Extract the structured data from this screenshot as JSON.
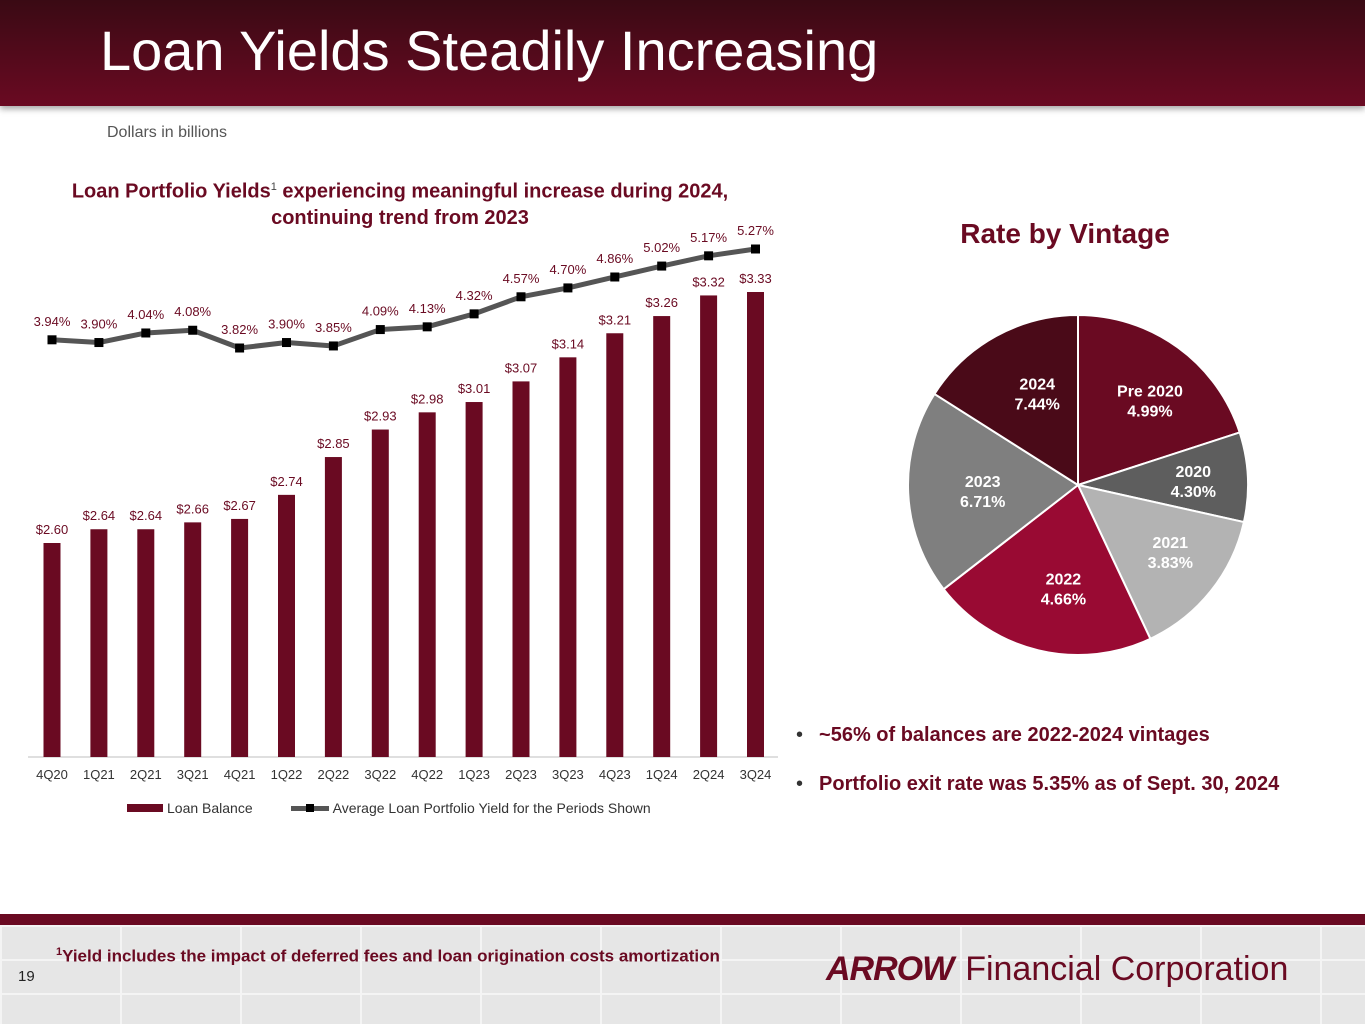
{
  "header": {
    "title": "Loan Yields Steadily Increasing"
  },
  "units_note": "Dollars in billions",
  "left_chart": {
    "title_pre": "Loan Portfolio Yields",
    "title_sup": "1",
    "title_post": " experiencing meaningful increase during 2024, continuing trend from 2023",
    "legend": {
      "bar_label": "Loan Balance",
      "line_label": "Average Loan Portfolio Yield for the Periods Shown"
    }
  },
  "chart_data": [
    {
      "type": "bar",
      "categories": [
        "4Q20",
        "1Q21",
        "2Q21",
        "3Q21",
        "4Q21",
        "1Q22",
        "2Q22",
        "3Q22",
        "4Q22",
        "1Q23",
        "2Q23",
        "3Q23",
        "4Q23",
        "1Q24",
        "2Q24",
        "3Q24"
      ],
      "series": [
        {
          "name": "Loan Balance",
          "values": [
            2.6,
            2.64,
            2.64,
            2.66,
            2.67,
            2.74,
            2.85,
            2.93,
            2.98,
            3.01,
            3.07,
            3.14,
            3.21,
            3.26,
            3.32,
            3.33
          ],
          "labels": [
            "$2.60",
            "$2.64",
            "$2.64",
            "$2.66",
            "$2.67",
            "$2.74",
            "$2.85",
            "$2.93",
            "$2.98",
            "$3.01",
            "$3.07",
            "$3.14",
            "$3.21",
            "$3.26",
            "$3.32",
            "$3.33"
          ],
          "color": "#6a0a22"
        },
        {
          "name": "Average Loan Portfolio Yield for the Periods Shown",
          "type": "line",
          "values": [
            3.94,
            3.9,
            4.04,
            4.08,
            3.82,
            3.9,
            3.85,
            4.09,
            4.13,
            4.32,
            4.57,
            4.7,
            4.86,
            5.02,
            5.17,
            5.27
          ],
          "labels": [
            "3.94%",
            "3.90%",
            "4.04%",
            "4.08%",
            "3.82%",
            "3.90%",
            "3.85%",
            "4.09%",
            "4.13%",
            "4.32%",
            "4.57%",
            "4.70%",
            "4.86%",
            "5.02%",
            "5.17%",
            "5.27%"
          ],
          "color": "#555555"
        }
      ],
      "legend": "bottom"
    },
    {
      "type": "pie",
      "title": "Rate by Vintage",
      "slices": [
        {
          "label": "Pre 2020",
          "rate": "4.99%",
          "share": 0.2,
          "color": "#6a0a22"
        },
        {
          "label": "2020",
          "rate": "4.30%",
          "share": 0.085,
          "color": "#5e5e5e"
        },
        {
          "label": "2021",
          "rate": "3.83%",
          "share": 0.145,
          "color": "#b3b3b3"
        },
        {
          "label": "2022",
          "rate": "4.66%",
          "share": 0.215,
          "color": "#990a33"
        },
        {
          "label": "2023",
          "rate": "6.71%",
          "share": 0.195,
          "color": "#7f7f7f"
        },
        {
          "label": "2024",
          "rate": "7.44%",
          "share": 0.16,
          "color": "#4a0a18"
        }
      ]
    }
  ],
  "bullets": [
    "~56% of balances are 2022-2024 vintages",
    "Portfolio exit rate was 5.35% as of Sept. 30, 2024"
  ],
  "footer": {
    "footnote_sup": "1",
    "footnote": "Yield includes the impact of deferred fees and loan origination costs amortization",
    "page_number": "19",
    "logo_word": "ARROW",
    "logo_rest": "Financial Corporation"
  }
}
